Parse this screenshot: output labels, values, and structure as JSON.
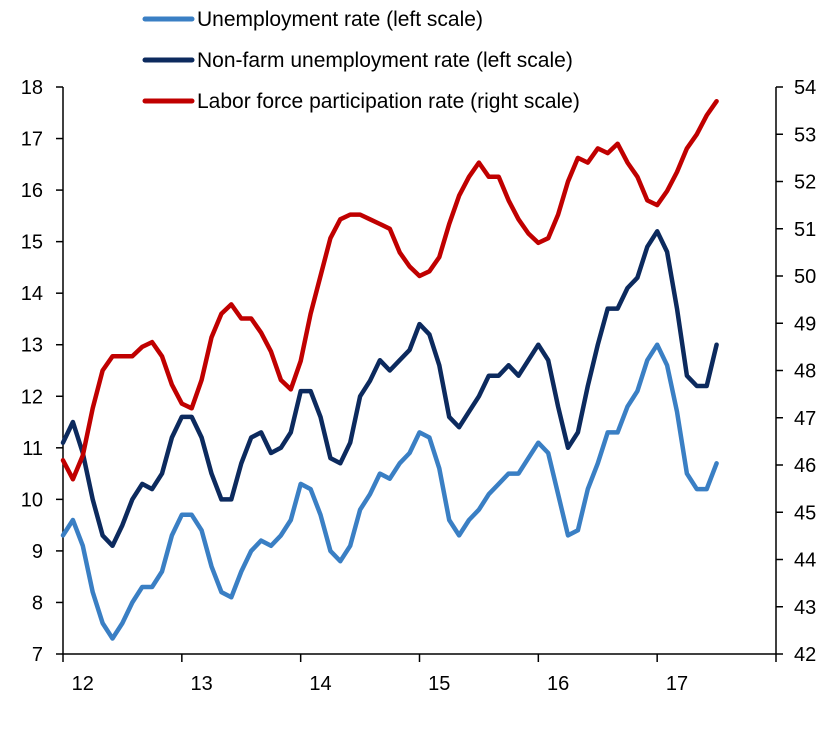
{
  "chart_data": {
    "type": "line",
    "title": "",
    "xlabel": "",
    "ylabel_left": "",
    "ylabel_right": "",
    "x_tick_labels": [
      "12",
      "13",
      "14",
      "15",
      "16",
      "17"
    ],
    "y_left_ticks": [
      7,
      8,
      9,
      10,
      11,
      12,
      13,
      14,
      15,
      16,
      17,
      18
    ],
    "y_right_ticks": [
      42,
      43,
      44,
      45,
      46,
      47,
      48,
      49,
      50,
      51,
      52,
      53,
      54
    ],
    "ylim_left": [
      7,
      18
    ],
    "ylim_right": [
      42,
      54
    ],
    "grid": false,
    "legend_position": "top-center",
    "series": [
      {
        "name": "Unemployment rate (left scale)",
        "axis": "left",
        "color": "#3a7fc4",
        "values": [
          9.3,
          9.6,
          9.1,
          8.2,
          7.6,
          7.3,
          7.6,
          8.0,
          8.3,
          8.3,
          8.6,
          9.3,
          9.7,
          9.7,
          9.4,
          8.7,
          8.2,
          8.1,
          8.6,
          9.0,
          9.2,
          9.1,
          9.3,
          9.6,
          10.3,
          10.2,
          9.7,
          9.0,
          8.8,
          9.1,
          9.8,
          10.1,
          10.5,
          10.4,
          10.7,
          10.9,
          11.3,
          11.2,
          10.6,
          9.6,
          9.3,
          9.6,
          9.8,
          10.1,
          10.3,
          10.5,
          10.5,
          10.8,
          11.1,
          10.9,
          10.1,
          9.3,
          9.4,
          10.2,
          10.7,
          11.3,
          11.3,
          11.8,
          12.1,
          12.7,
          13.0,
          12.6,
          11.7,
          10.5,
          10.2,
          10.2,
          10.7
        ]
      },
      {
        "name": "Non-farm unemployment rate (left scale)",
        "axis": "left",
        "color": "#0c2a5e",
        "values": [
          11.1,
          11.5,
          10.9,
          10.0,
          9.3,
          9.1,
          9.5,
          10.0,
          10.3,
          10.2,
          10.5,
          11.2,
          11.6,
          11.6,
          11.2,
          10.5,
          10.0,
          10.0,
          10.7,
          11.2,
          11.3,
          10.9,
          11.0,
          11.3,
          12.1,
          12.1,
          11.6,
          10.8,
          10.7,
          11.1,
          12.0,
          12.3,
          12.7,
          12.5,
          12.7,
          12.9,
          13.4,
          13.2,
          12.6,
          11.6,
          11.4,
          11.7,
          12.0,
          12.4,
          12.4,
          12.6,
          12.4,
          12.7,
          13.0,
          12.7,
          11.8,
          11.0,
          11.3,
          12.2,
          13.0,
          13.7,
          13.7,
          14.1,
          14.3,
          14.9,
          15.2,
          14.8,
          13.7,
          12.4,
          12.2,
          12.2,
          13.0
        ]
      },
      {
        "name": "Labor force participation rate (right scale)",
        "axis": "right",
        "color": "#c00000",
        "values": [
          46.1,
          45.7,
          46.2,
          47.2,
          48.0,
          48.3,
          48.3,
          48.3,
          48.5,
          48.6,
          48.3,
          47.7,
          47.3,
          47.2,
          47.8,
          48.7,
          49.2,
          49.4,
          49.1,
          49.1,
          48.8,
          48.4,
          47.8,
          47.6,
          48.2,
          49.2,
          50.0,
          50.8,
          51.2,
          51.3,
          51.3,
          51.2,
          51.1,
          51.0,
          50.5,
          50.2,
          50.0,
          50.1,
          50.4,
          51.1,
          51.7,
          52.1,
          52.4,
          52.1,
          52.1,
          51.6,
          51.2,
          50.9,
          50.7,
          50.8,
          51.3,
          52.0,
          52.5,
          52.4,
          52.7,
          52.6,
          52.8,
          52.4,
          52.1,
          51.6,
          51.5,
          51.8,
          52.2,
          52.7,
          53.0,
          53.4,
          53.7
        ]
      }
    ]
  }
}
